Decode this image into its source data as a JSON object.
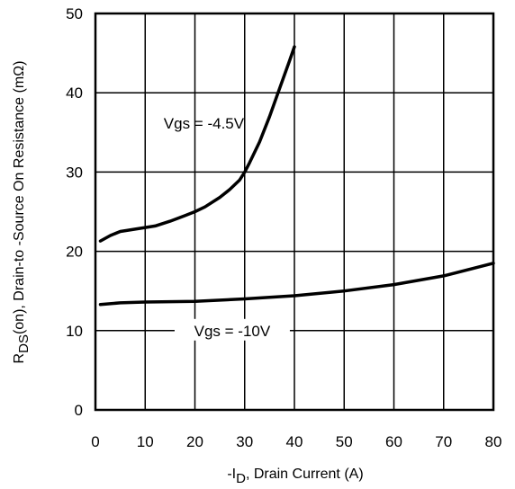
{
  "chart_data": {
    "type": "line",
    "title": "",
    "xlabel": {
      "prefix": "-I",
      "sub": "D",
      "suffix": ", Drain Current (A)"
    },
    "ylabel": {
      "prefix": "R",
      "sub": "DS",
      "suffix": "(on),  Drain-to -Source On Resistance (mΩ)"
    },
    "xlim": [
      0,
      80
    ],
    "ylim": [
      0,
      50
    ],
    "xticks": [
      0,
      10,
      20,
      30,
      40,
      50,
      60,
      70,
      80
    ],
    "yticks": [
      0,
      10,
      20,
      30,
      40,
      50
    ],
    "grid": true,
    "series": [
      {
        "name": "Vgs = -4.5V",
        "x": [
          1,
          3,
          5,
          8,
          10,
          12,
          15,
          18,
          20,
          22,
          25,
          27,
          29,
          30,
          31,
          33,
          35,
          37,
          39,
          40
        ],
        "y": [
          21.3,
          22.0,
          22.5,
          22.8,
          23.0,
          23.2,
          23.8,
          24.5,
          25.0,
          25.6,
          26.8,
          27.8,
          29.0,
          30.0,
          31.2,
          33.8,
          37.0,
          40.5,
          44.0,
          45.8
        ]
      },
      {
        "name": "Vgs = -10V",
        "x": [
          1,
          5,
          10,
          20,
          30,
          40,
          50,
          60,
          70,
          80
        ],
        "y": [
          13.3,
          13.5,
          13.6,
          13.7,
          14.0,
          14.4,
          15.0,
          15.8,
          16.9,
          18.5
        ]
      }
    ]
  }
}
